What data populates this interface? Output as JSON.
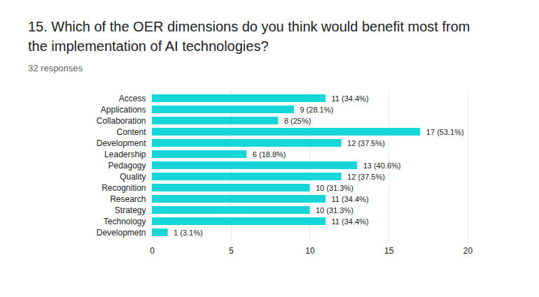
{
  "chart_data": {
    "type": "bar",
    "title": "15. Which of the OER dimensions do you think would benefit most from the implementation of AI technologies?",
    "subtitle": "32 responses",
    "orientation": "horizontal",
    "categories": [
      "Access",
      "Applications",
      "Collaboration",
      "Content",
      "Development",
      "Leadership",
      "Pedagogy",
      "Quality",
      "Recognition",
      "Research",
      "Strategy",
      "Technology",
      "Developmetn"
    ],
    "values": [
      11,
      9,
      8,
      17,
      12,
      6,
      13,
      12,
      10,
      11,
      10,
      11,
      1
    ],
    "value_labels": [
      "11 (34.4%)",
      "9 (28.1%)",
      "8 (25%)",
      "17 (53.1%)",
      "12 (37.5%)",
      "6 (18.8%)",
      "13 (40.6%)",
      "12 (37.5%)",
      "10 (31.3%)",
      "11 (34.4%)",
      "10 (31.3%)",
      "11 (34.4%)",
      "1 (3.1%)"
    ],
    "data_labels": true,
    "color": "#16d6d8",
    "xlim": [
      0,
      20
    ],
    "xticks": [
      0,
      5,
      10,
      15,
      20
    ],
    "grid": true
  }
}
